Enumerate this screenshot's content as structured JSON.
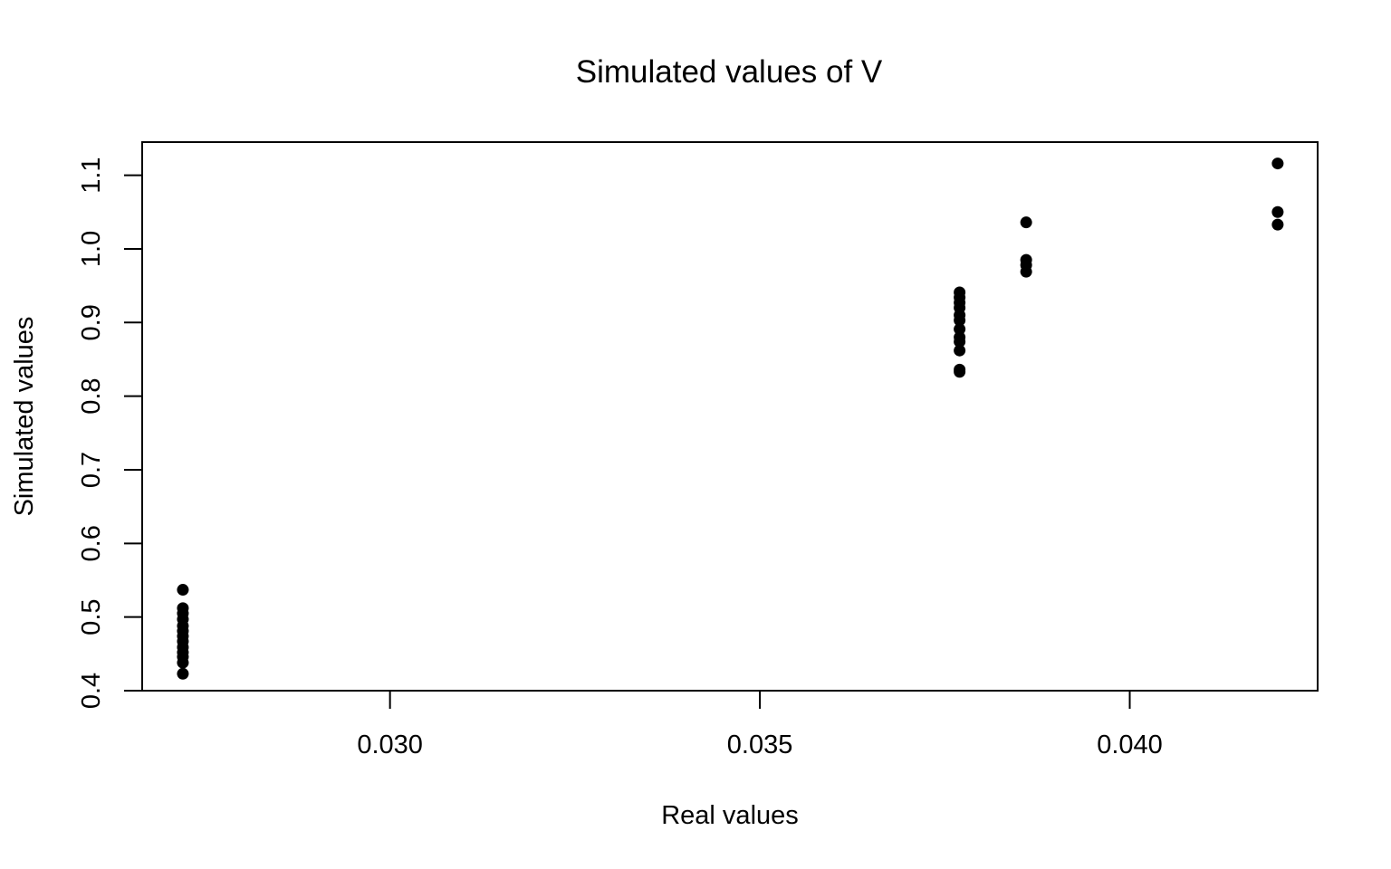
{
  "chart_data": {
    "type": "scatter",
    "title": "Simulated values of V",
    "xlabel": "Real values",
    "ylabel": "Simulated values",
    "xlim": [
      0.02665,
      0.04254
    ],
    "ylim": [
      0.4,
      1.145
    ],
    "x_ticks": [
      {
        "value": 0.03,
        "label": "0.030"
      },
      {
        "value": 0.035,
        "label": "0.035"
      },
      {
        "value": 0.04,
        "label": "0.040"
      }
    ],
    "y_ticks": [
      {
        "value": 0.4,
        "label": "0.4"
      },
      {
        "value": 0.5,
        "label": "0.5"
      },
      {
        "value": 0.6,
        "label": "0.6"
      },
      {
        "value": 0.7,
        "label": "0.7"
      },
      {
        "value": 0.8,
        "label": "0.8"
      },
      {
        "value": 0.9,
        "label": "0.9"
      },
      {
        "value": 1.0,
        "label": "1.0"
      },
      {
        "value": 1.1,
        "label": "1.1"
      }
    ],
    "grid": false,
    "marker_color": "#000000",
    "points": [
      {
        "x": 0.0272,
        "y": 0.537
      },
      {
        "x": 0.0272,
        "y": 0.512
      },
      {
        "x": 0.0272,
        "y": 0.505
      },
      {
        "x": 0.0272,
        "y": 0.497
      },
      {
        "x": 0.0272,
        "y": 0.488
      },
      {
        "x": 0.0272,
        "y": 0.481
      },
      {
        "x": 0.0272,
        "y": 0.474
      },
      {
        "x": 0.0272,
        "y": 0.467
      },
      {
        "x": 0.0272,
        "y": 0.459
      },
      {
        "x": 0.0272,
        "y": 0.452
      },
      {
        "x": 0.0272,
        "y": 0.446
      },
      {
        "x": 0.0272,
        "y": 0.438
      },
      {
        "x": 0.0272,
        "y": 0.423
      },
      {
        "x": 0.0377,
        "y": 0.941
      },
      {
        "x": 0.0377,
        "y": 0.934
      },
      {
        "x": 0.0377,
        "y": 0.927
      },
      {
        "x": 0.0377,
        "y": 0.92
      },
      {
        "x": 0.0377,
        "y": 0.91
      },
      {
        "x": 0.0377,
        "y": 0.903
      },
      {
        "x": 0.0377,
        "y": 0.891
      },
      {
        "x": 0.0377,
        "y": 0.88
      },
      {
        "x": 0.0377,
        "y": 0.874
      },
      {
        "x": 0.0377,
        "y": 0.862
      },
      {
        "x": 0.0377,
        "y": 0.836
      },
      {
        "x": 0.0377,
        "y": 0.833
      },
      {
        "x": 0.0386,
        "y": 1.036
      },
      {
        "x": 0.0386,
        "y": 0.985
      },
      {
        "x": 0.0386,
        "y": 0.978
      },
      {
        "x": 0.0386,
        "y": 0.969
      },
      {
        "x": 0.042,
        "y": 1.116
      },
      {
        "x": 0.042,
        "y": 1.05
      },
      {
        "x": 0.042,
        "y": 1.033
      }
    ]
  }
}
